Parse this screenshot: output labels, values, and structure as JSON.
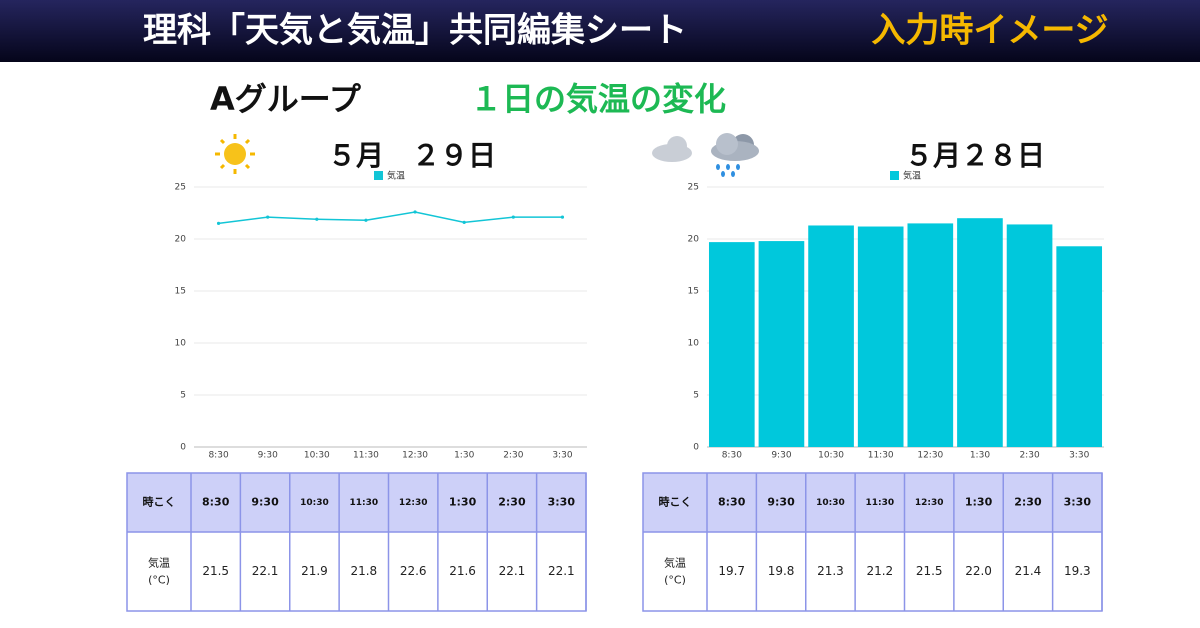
{
  "header": {
    "title": "理科「天気と気温」共同編集シート",
    "badge": "入力時イメージ"
  },
  "group": "Aグループ",
  "heading": "１日の気温の変化",
  "chart_data": [
    {
      "type": "line",
      "title": "５月　２９日",
      "categories": [
        "8:30",
        "9:30",
        "10:30",
        "11:30",
        "12:30",
        "1:30",
        "2:30",
        "3:30"
      ],
      "series": [
        {
          "name": "気温",
          "color": "#12c5d6",
          "values": [
            21.5,
            22.1,
            21.9,
            21.8,
            22.6,
            21.6,
            22.1,
            22.1
          ]
        }
      ],
      "ylim": [
        0,
        25
      ],
      "yticks": [
        0,
        5,
        10,
        15,
        20,
        25
      ],
      "grid": true,
      "legend": "top"
    },
    {
      "type": "bar",
      "title": "５月２８日",
      "categories": [
        "8:30",
        "9:30",
        "10:30",
        "11:30",
        "12:30",
        "1:30",
        "2:30",
        "3:30"
      ],
      "series": [
        {
          "name": "気温",
          "color": "#00c8dc",
          "values": [
            19.7,
            19.8,
            21.3,
            21.2,
            21.5,
            22.0,
            21.4,
            19.3
          ]
        }
      ],
      "ylim": [
        0,
        25
      ],
      "yticks": [
        0,
        5,
        10,
        15,
        20,
        25
      ],
      "grid": true,
      "legend": "top"
    }
  ],
  "tables": [
    {
      "header_label": "時こく",
      "times": [
        "8:30",
        "9:30",
        "10:30",
        "11:30",
        "12:30",
        "1:30",
        "2:30",
        "3:30"
      ],
      "row_label": [
        "気温",
        "(°C)"
      ],
      "temps": [
        "21.5",
        "22.1",
        "21.9",
        "21.8",
        "22.6",
        "21.6",
        "22.1",
        "22.1"
      ]
    },
    {
      "header_label": "時こく",
      "times": [
        "8:30",
        "9:30",
        "10:30",
        "11:30",
        "12:30",
        "1:30",
        "2:30",
        "3:30"
      ],
      "row_label": [
        "気温",
        "(°C)"
      ],
      "temps": [
        "19.7",
        "19.8",
        "21.3",
        "21.2",
        "21.5",
        "22.0",
        "21.4",
        "19.3"
      ]
    }
  ]
}
